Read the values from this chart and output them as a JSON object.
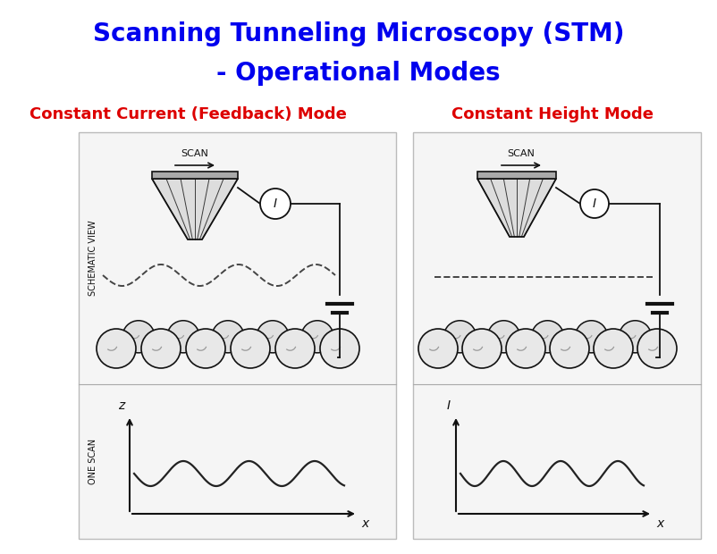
{
  "title_line1": "Scanning Tunneling Microscopy (STM)",
  "title_line2": "- Operational Modes",
  "title_color": "#0000EE",
  "title_fontsize": 20,
  "subtitle1": "Constant Current (Feedback) Mode",
  "subtitle2": "Constant Height Mode",
  "subtitle_color": "#DD0000",
  "subtitle_fontsize": 13,
  "bg_color": "#FFFFFF",
  "draw_color": "#111111",
  "panel_bg": "#F8F8F8"
}
